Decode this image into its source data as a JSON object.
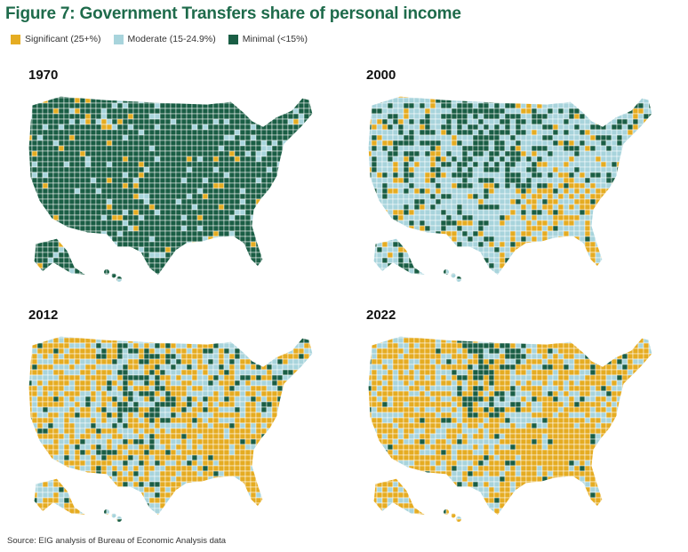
{
  "figure": {
    "title": "Figure 7: Government Transfers share of personal income",
    "source": "Source: EIG analysis of Bureau of Economic Analysis data"
  },
  "legend": [
    {
      "label": "Significant (25+%)",
      "color": "#e5ac22"
    },
    {
      "label": "Moderate (15-24.9%)",
      "color": "#a8d4dc"
    },
    {
      "label": "Minimal (<15%)",
      "color": "#1a5e45"
    }
  ],
  "maps": [
    {
      "year": "1970",
      "share": {
        "significant": 0.04,
        "moderate": 0.08,
        "minimal": 0.88
      }
    },
    {
      "year": "2000",
      "share": {
        "significant": 0.12,
        "moderate": 0.58,
        "minimal": 0.3
      }
    },
    {
      "year": "2012",
      "share": {
        "significant": 0.42,
        "moderate": 0.43,
        "minimal": 0.15
      }
    },
    {
      "year": "2022",
      "share": {
        "significant": 0.55,
        "moderate": 0.36,
        "minimal": 0.09
      }
    }
  ]
}
